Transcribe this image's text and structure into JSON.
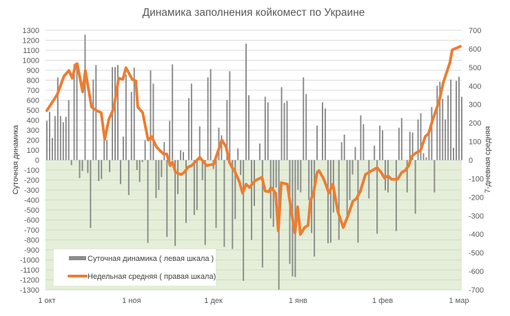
{
  "chart_data": {
    "type": "bar+line",
    "title": "Динамика заполнения койкомест по Украине",
    "xlabel": "",
    "ylabel_left": "Суточная динамика",
    "ylabel_right": "7-дневная средняя",
    "ylim_left": [
      -1300,
      1300
    ],
    "ylim_right": [
      -700,
      700
    ],
    "yticks_left": [
      1300,
      1200,
      1100,
      1000,
      900,
      800,
      700,
      600,
      500,
      400,
      300,
      200,
      100,
      0,
      -100,
      -200,
      -300,
      -400,
      -500,
      -600,
      -700,
      -800,
      -900,
      -1000,
      -1100,
      -1200,
      -1300
    ],
    "yticks_right": [
      700,
      600,
      500,
      400,
      300,
      200,
      100,
      0,
      -100,
      -200,
      -300,
      -400,
      -500,
      -600,
      -700
    ],
    "x_unit": "days since 1 Oct",
    "xlim": [
      0,
      151
    ],
    "xticks": [
      {
        "day": 0,
        "label": "1 окт"
      },
      {
        "day": 31,
        "label": "1 ноя"
      },
      {
        "day": 61,
        "label": "1 дек"
      },
      {
        "day": 92,
        "label": "1 янв"
      },
      {
        "day": 123,
        "label": "1 фев"
      },
      {
        "day": 151,
        "label": "1 мар"
      }
    ],
    "grid": true,
    "negative_region_color": "#e4eed8",
    "legend_position": "bottom-left",
    "series": [
      {
        "name": "Суточная динамика ( левая шкала )",
        "type": "bar",
        "axis": "left",
        "color": "#8c8c8c",
        "points": [
          [
            0,
            393
          ],
          [
            1,
            483
          ],
          [
            2,
            221
          ],
          [
            3,
            441
          ],
          [
            4,
            828
          ],
          [
            5,
            441
          ],
          [
            6,
            380
          ],
          [
            7,
            434
          ],
          [
            8,
            600
          ],
          [
            9,
            -50
          ],
          [
            10,
            959
          ],
          [
            11,
            959
          ],
          [
            12,
            -180
          ],
          [
            13,
            -110
          ],
          [
            14,
            1256
          ],
          [
            15,
            -130
          ],
          [
            16,
            -680
          ],
          [
            17,
            807
          ],
          [
            18,
            952
          ],
          [
            19,
            -210
          ],
          [
            20,
            -190
          ],
          [
            21,
            200
          ],
          [
            22,
            200
          ],
          [
            23,
            -120
          ],
          [
            24,
            931
          ],
          [
            25,
            931
          ],
          [
            26,
            952
          ],
          [
            27,
            -240
          ],
          [
            28,
            235
          ],
          [
            29,
            856
          ],
          [
            30,
            -350
          ],
          [
            31,
            683
          ],
          [
            32,
            925
          ],
          [
            33,
            -100
          ],
          [
            34,
            -220
          ],
          [
            35,
            -20
          ],
          [
            36,
            200
          ],
          [
            37,
            -830
          ],
          [
            38,
            897
          ],
          [
            39,
            766
          ],
          [
            40,
            -380
          ],
          [
            41,
            -300
          ],
          [
            42,
            -170
          ],
          [
            43,
            180
          ],
          [
            44,
            -770
          ],
          [
            45,
            393
          ],
          [
            46,
            959
          ],
          [
            47,
            -860
          ],
          [
            48,
            -340
          ],
          [
            49,
            97
          ],
          [
            50,
            80
          ],
          [
            51,
            -630
          ],
          [
            52,
            621
          ],
          [
            53,
            766
          ],
          [
            54,
            -550
          ],
          [
            55,
            -500
          ],
          [
            56,
            338
          ],
          [
            57,
            -200
          ],
          [
            58,
            -850
          ],
          [
            59,
            828
          ],
          [
            60,
            911
          ],
          [
            61,
            -90
          ],
          [
            62,
            -680
          ],
          [
            63,
            324
          ],
          [
            64,
            248
          ],
          [
            65,
            -870
          ],
          [
            66,
            600
          ],
          [
            67,
            890
          ],
          [
            68,
            -890
          ],
          [
            69,
            -590
          ],
          [
            70,
            117
          ],
          [
            71,
            -150
          ],
          [
            72,
            -1210
          ],
          [
            73,
            1166
          ],
          [
            74,
            649
          ],
          [
            75,
            -800
          ],
          [
            76,
            -460
          ],
          [
            78,
            166
          ],
          [
            79,
            -1076
          ],
          [
            80,
            634
          ],
          [
            81,
            579
          ],
          [
            82,
            -586
          ],
          [
            83,
            -669
          ],
          [
            84,
            -276
          ],
          [
            85,
            -1297
          ],
          [
            86,
            731
          ],
          [
            87,
            572
          ],
          [
            88,
            593
          ],
          [
            89,
            -1041
          ],
          [
            90,
            -1166
          ],
          [
            91,
            -1172
          ],
          [
            92,
            -297
          ],
          [
            93,
            -324
          ],
          [
            94,
            828
          ],
          [
            95,
            662
          ],
          [
            96,
            -400
          ],
          [
            97,
            -731
          ],
          [
            98,
            -966
          ],
          [
            99,
            345
          ],
          [
            101,
            579
          ],
          [
            102,
            517
          ],
          [
            103,
            -834
          ],
          [
            104,
            -828
          ],
          [
            105,
            -524
          ],
          [
            107,
            -800
          ],
          [
            108,
            179
          ],
          [
            109,
            255
          ],
          [
            110,
            -552
          ],
          [
            111,
            -400
          ],
          [
            112,
            -145
          ],
          [
            113,
            131
          ],
          [
            114,
            -828
          ],
          [
            115,
            448
          ],
          [
            116,
            359
          ],
          [
            118,
            -386
          ],
          [
            120,
            145
          ],
          [
            121,
            -738
          ],
          [
            122,
            345
          ],
          [
            123,
            297
          ],
          [
            124,
            -303
          ],
          [
            125,
            -324
          ],
          [
            128,
            -710
          ],
          [
            129,
            324
          ],
          [
            130,
            421
          ],
          [
            132,
            -324
          ],
          [
            133,
            283
          ],
          [
            134,
            276
          ],
          [
            135,
            -538
          ],
          [
            136,
            407
          ],
          [
            137,
            469
          ],
          [
            138,
            69
          ],
          [
            139,
            28
          ],
          [
            140,
            269
          ],
          [
            141,
            531
          ],
          [
            142,
            -324
          ],
          [
            143,
            745
          ],
          [
            144,
            786
          ],
          [
            145,
            614
          ],
          [
            146,
            407
          ],
          [
            147,
            648
          ],
          [
            148,
            807
          ],
          [
            149,
            124
          ],
          [
            150,
            793
          ],
          [
            151,
            835
          ],
          [
            152,
            634
          ]
        ]
      },
      {
        "name": "Недельная средняя ( правая шкала)",
        "type": "line",
        "axis": "right",
        "color": "#ed7d31",
        "points": [
          [
            0,
            267
          ],
          [
            3.8,
            353
          ],
          [
            6.3,
            453
          ],
          [
            8.1,
            483
          ],
          [
            9.3,
            442
          ],
          [
            10.6,
            516
          ],
          [
            11.1,
            520
          ],
          [
            13.1,
            368
          ],
          [
            14.1,
            483
          ],
          [
            16.4,
            286
          ],
          [
            18.2,
            267
          ],
          [
            19.9,
            256
          ],
          [
            21.2,
            111
          ],
          [
            22.7,
            219
          ],
          [
            24.5,
            279
          ],
          [
            26.3,
            442
          ],
          [
            27.8,
            435
          ],
          [
            29,
            498
          ],
          [
            31.3,
            435
          ],
          [
            32.6,
            427
          ],
          [
            33.3,
            286
          ],
          [
            35.1,
            256
          ],
          [
            37.1,
            108
          ],
          [
            38.4,
            126
          ],
          [
            40.2,
            70
          ],
          [
            42.7,
            33
          ],
          [
            43.9,
            33
          ],
          [
            45.2,
            -30
          ],
          [
            46,
            -11
          ],
          [
            47.2,
            -67
          ],
          [
            49.2,
            -78
          ],
          [
            50.3,
            -67
          ],
          [
            51.8,
            -37
          ],
          [
            53,
            -30
          ],
          [
            56,
            15
          ],
          [
            58.6,
            -30
          ],
          [
            61.1,
            -22
          ],
          [
            64.1,
            108
          ],
          [
            65.7,
            70
          ],
          [
            66.9,
            -11
          ],
          [
            67.9,
            -41
          ],
          [
            68.7,
            -56
          ],
          [
            70.5,
            -115
          ],
          [
            71.7,
            -178
          ],
          [
            73,
            -130
          ],
          [
            74.2,
            -148
          ],
          [
            76.3,
            -111
          ],
          [
            78.8,
            -93
          ],
          [
            80,
            -167
          ],
          [
            81.3,
            -171
          ],
          [
            82.1,
            -148
          ],
          [
            83.8,
            -178
          ],
          [
            84.8,
            -382
          ],
          [
            85.9,
            -122
          ],
          [
            88.1,
            -130
          ],
          [
            89.6,
            -278
          ],
          [
            90.9,
            -393
          ],
          [
            91.9,
            -252
          ],
          [
            92.9,
            -401
          ],
          [
            94.4,
            -364
          ],
          [
            95.7,
            -352
          ],
          [
            96.5,
            -223
          ],
          [
            97.7,
            -178
          ],
          [
            99,
            -67
          ],
          [
            99.7,
            -56
          ],
          [
            101.5,
            -104
          ],
          [
            103.3,
            -178
          ],
          [
            104.8,
            -130
          ],
          [
            106.6,
            -278
          ],
          [
            108.6,
            -364
          ],
          [
            110.4,
            -297
          ],
          [
            112.1,
            -223
          ],
          [
            113.4,
            -208
          ],
          [
            114.9,
            -167
          ],
          [
            116.7,
            -78
          ],
          [
            119.2,
            -56
          ],
          [
            121,
            -41
          ],
          [
            122.5,
            -67
          ],
          [
            123.7,
            -97
          ],
          [
            125,
            -85
          ],
          [
            126.3,
            -104
          ],
          [
            128.5,
            -104
          ],
          [
            130,
            -67
          ],
          [
            131.3,
            -56
          ],
          [
            132.6,
            -30
          ],
          [
            133.6,
            19
          ],
          [
            135.1,
            37
          ],
          [
            136.9,
            52
          ],
          [
            138.6,
            126
          ],
          [
            139.9,
            145
          ],
          [
            141.4,
            219
          ],
          [
            143.7,
            316
          ],
          [
            145.2,
            416
          ],
          [
            147.7,
            527
          ],
          [
            148.5,
            594
          ],
          [
            151.5,
            613
          ]
        ]
      }
    ]
  }
}
